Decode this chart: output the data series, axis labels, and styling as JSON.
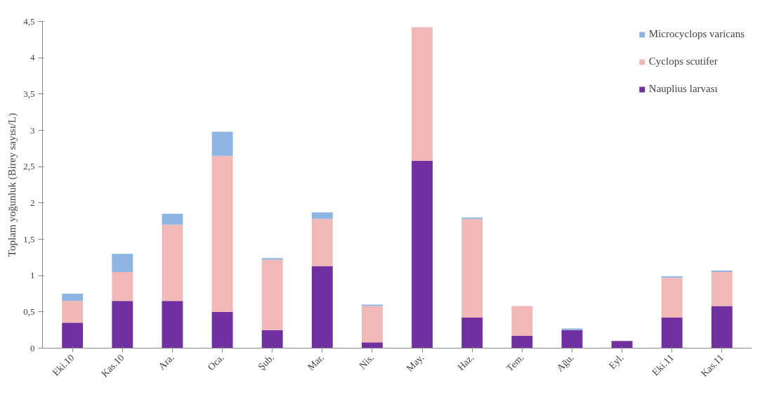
{
  "chart_data": {
    "type": "bar",
    "stacked": true,
    "ylabel": "Toplam yoğunluk (Birey sayısı/L)",
    "categories": [
      "Eki.10",
      "Kas.10",
      "Ara.",
      "Oca.",
      "Şub.",
      "Mar.",
      "Nis.",
      "May.",
      "Haz.",
      "Tem.",
      "Ağu.",
      "Eyl.",
      "Eki.11",
      "Kas.11"
    ],
    "series": [
      {
        "name": "Nauplius larvası",
        "color": "#7030a0",
        "values": [
          0.35,
          0.65,
          0.65,
          0.5,
          0.25,
          1.13,
          0.08,
          2.58,
          0.42,
          0.17,
          0.25,
          0.1,
          0.42,
          0.58
        ]
      },
      {
        "name": "Cyclops scutifer",
        "color": "#f2b8b8",
        "values": [
          0.3,
          0.4,
          1.05,
          2.15,
          0.97,
          0.65,
          0.5,
          1.84,
          1.36,
          0.41,
          0,
          0,
          0.55,
          0.47
        ]
      },
      {
        "name": "Microcyclops varicans",
        "color": "#8db4e2",
        "values": [
          0.1,
          0.25,
          0.15,
          0.33,
          0.02,
          0.09,
          0.02,
          0,
          0.02,
          0,
          0.02,
          0,
          0.02,
          0.02
        ]
      }
    ],
    "ylim": [
      0,
      4.5
    ],
    "yticks": [
      0,
      {
        "value": 0.5,
        "label": "0,5"
      },
      1,
      {
        "value": 1.5,
        "label": "1,5"
      },
      2,
      {
        "value": 2.5,
        "label": "2,5"
      },
      3,
      {
        "value": 3.5,
        "label": "3,5"
      },
      4,
      {
        "value": 4.5,
        "label": "4,5"
      }
    ],
    "grid": false,
    "legend": "top right"
  }
}
